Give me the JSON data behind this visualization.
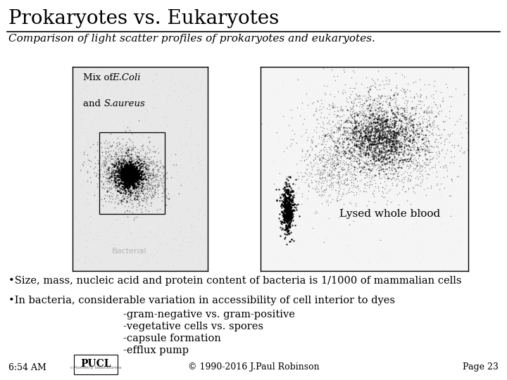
{
  "title": "Prokaryotes vs. Eukaryotes",
  "subtitle": "Comparison of light scatter profiles of prokaryotes and eukaryotes.",
  "title_fontsize": 20,
  "subtitle_fontsize": 11,
  "background_color": "#ffffff",
  "title_color": "#000000",
  "subtitle_color": "#000000",
  "right_image_label": "Lysed whole blood",
  "bullet1": "•Size, mass, nucleic acid and protein content of bacteria is 1/1000 of mammalian cells",
  "bullet2": "•In bacteria, considerable variation in accessibility of cell interior to dyes",
  "sub_bullet1": "-gram-negative vs. gram-positive",
  "sub_bullet2": "-vegetative cells vs. spores",
  "sub_bullet3": "-capsule formation",
  "sub_bullet4": "-efflux pump",
  "footer_left": "6:54 AM",
  "footer_center": "© 1990-2016 J.Paul Robinson",
  "footer_right": "Page 23",
  "footer_fontsize": 9,
  "bullet_fontsize": 10.5
}
